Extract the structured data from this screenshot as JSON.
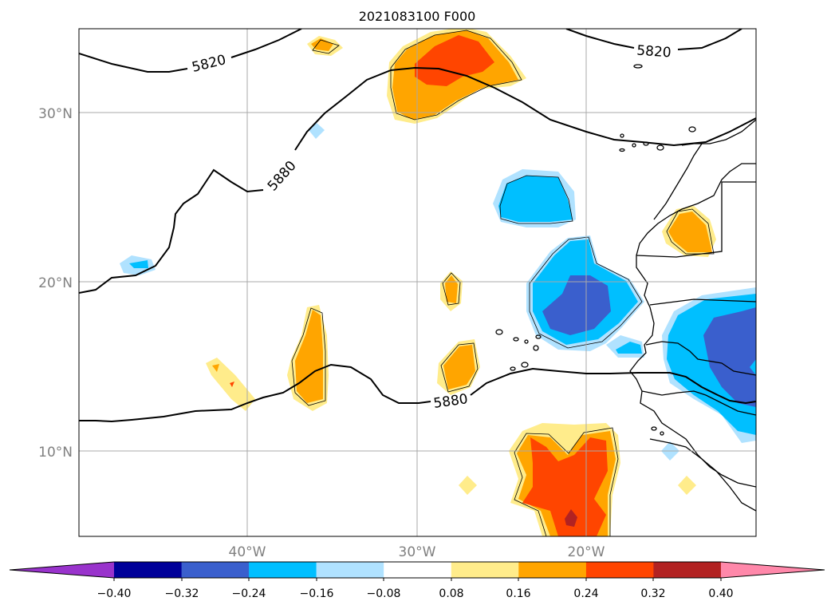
{
  "title": "2021083100 F000",
  "map": {
    "lat_labels": [
      "30°N",
      "20°N",
      "10°N"
    ],
    "lon_labels": [
      "40°W",
      "30°W",
      "20°W"
    ],
    "contour_labels": [
      "5820",
      "5820",
      "5880",
      "5880"
    ],
    "grid": true
  },
  "colorbar": {
    "ticks": [
      "−0.40",
      "−0.32",
      "−0.24",
      "−0.16",
      "−0.08",
      "0.08",
      "0.16",
      "0.24",
      "0.32",
      "0.40"
    ],
    "colors": [
      "#9933cc",
      "#000099",
      "#3a5fcd",
      "#00bfff",
      "#b0e2ff",
      "#ffffff",
      "#ffec8b",
      "#ffa500",
      "#ff4500",
      "#b22222",
      "#ff88aa"
    ],
    "extend": "both"
  }
}
